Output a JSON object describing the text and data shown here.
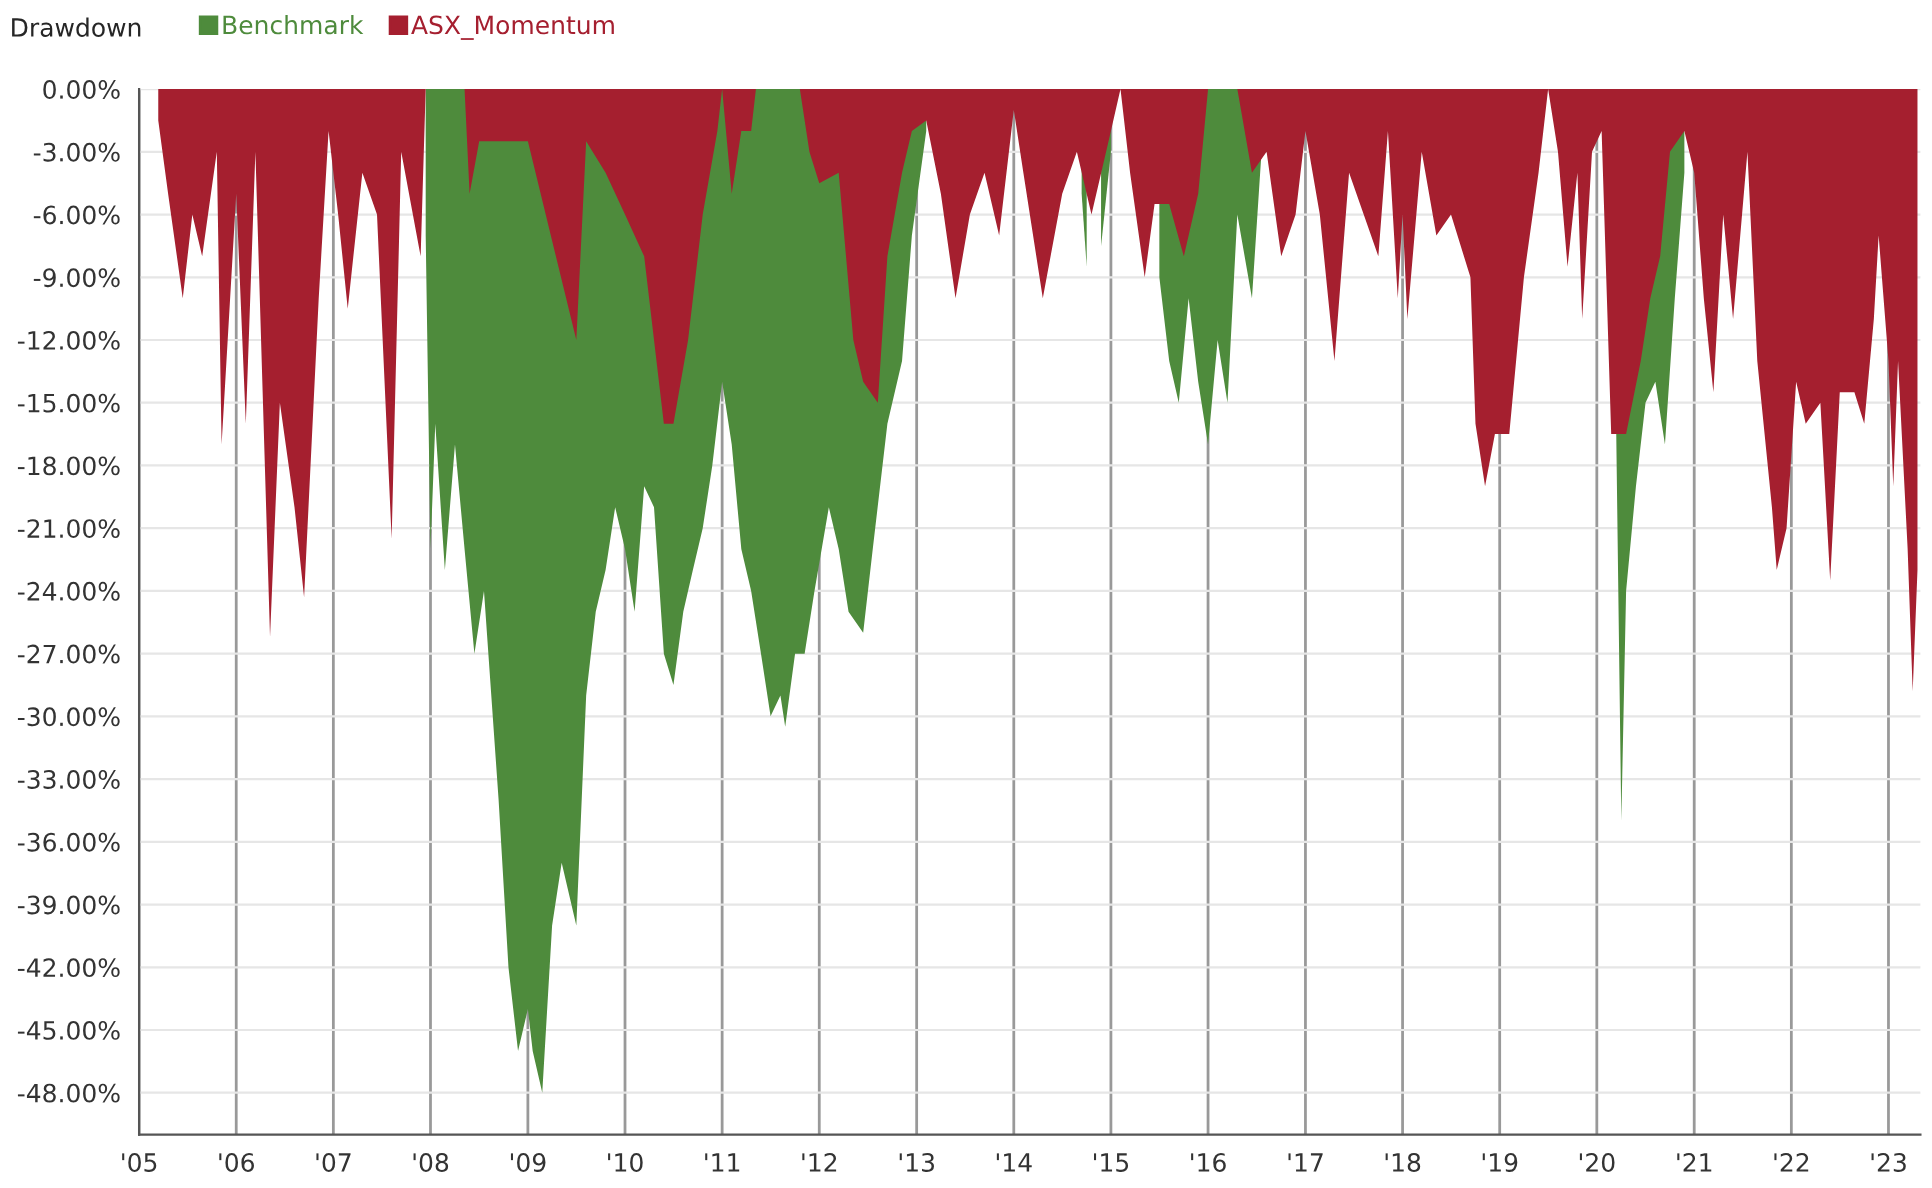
{
  "chart_data": {
    "type": "area",
    "legend_title": "Drawdown",
    "xlim": [
      "2005-01-01",
      "2023-05-01"
    ],
    "xticks": [
      {
        "value": "2005-01-01",
        "label": "'05"
      },
      {
        "value": "2006-01-01",
        "label": "'06"
      },
      {
        "value": "2007-01-01",
        "label": "'07"
      },
      {
        "value": "2008-01-01",
        "label": "'08"
      },
      {
        "value": "2009-01-01",
        "label": "'09"
      },
      {
        "value": "2010-01-01",
        "label": "'10"
      },
      {
        "value": "2011-01-01",
        "label": "'11"
      },
      {
        "value": "2012-01-01",
        "label": "'12"
      },
      {
        "value": "2013-01-01",
        "label": "'13"
      },
      {
        "value": "2014-01-01",
        "label": "'14"
      },
      {
        "value": "2015-01-01",
        "label": "'15"
      },
      {
        "value": "2016-01-01",
        "label": "'16"
      },
      {
        "value": "2017-01-01",
        "label": "'17"
      },
      {
        "value": "2018-01-01",
        "label": "'18"
      },
      {
        "value": "2019-01-01",
        "label": "'19"
      },
      {
        "value": "2020-01-01",
        "label": "'20"
      },
      {
        "value": "2021-01-01",
        "label": "'21"
      },
      {
        "value": "2022-01-01",
        "label": "'22"
      },
      {
        "value": "2023-01-01",
        "label": "'23"
      }
    ],
    "ylim": [
      -50,
      0
    ],
    "yticks": [
      {
        "value": 0,
        "label": "0.00%"
      },
      {
        "value": -3,
        "label": "-3.00%"
      },
      {
        "value": -6,
        "label": "-6.00%"
      },
      {
        "value": -9,
        "label": "-9.00%"
      },
      {
        "value": -12,
        "label": "-12.00%"
      },
      {
        "value": -15,
        "label": "-15.00%"
      },
      {
        "value": -18,
        "label": "-18.00%"
      },
      {
        "value": -21,
        "label": "-21.00%"
      },
      {
        "value": -24,
        "label": "-24.00%"
      },
      {
        "value": -27,
        "label": "-27.00%"
      },
      {
        "value": -30,
        "label": "-30.00%"
      },
      {
        "value": -33,
        "label": "-33.00%"
      },
      {
        "value": -36,
        "label": "-36.00%"
      },
      {
        "value": -39,
        "label": "-39.00%"
      },
      {
        "value": -42,
        "label": "-42.00%"
      },
      {
        "value": -45,
        "label": "-45.00%"
      },
      {
        "value": -48,
        "label": "-48.00%"
      }
    ],
    "grid": true,
    "legend": "top left",
    "series": [
      {
        "name": "Benchmark",
        "color": "#4e8b3c",
        "x": [
          "2007-12-14",
          "2008-01-01",
          "2008-01-19",
          "2008-02-24",
          "2008-04-02",
          "2008-05-08",
          "2008-06-14",
          "2008-07-20",
          "2008-09-13",
          "2008-10-20",
          "2008-11-25",
          "2009-01-01",
          "2009-01-19",
          "2009-02-24",
          "2009-04-02",
          "2009-05-08",
          "2009-07-02",
          "2009-08-08",
          "2009-09-13",
          "2009-10-20",
          "2009-11-25",
          "2010-01-01",
          "2010-02-06",
          "2010-03-14",
          "2010-04-20",
          "2010-05-27",
          "2010-07-02",
          "2010-08-08",
          "2010-09-13",
          "2010-10-20",
          "2010-11-25",
          "2011-01-01",
          "2011-02-06",
          "2011-03-14",
          "2011-04-20",
          "2011-05-27",
          "2011-07-02",
          "2011-08-08",
          "2011-08-26",
          "2011-10-02",
          "2011-11-07",
          "2011-12-14",
          "2012-02-06",
          "2012-03-14",
          "2012-04-20",
          "2012-06-14",
          "2012-07-20",
          "2012-09-13",
          "2012-11-07",
          "2012-12-14",
          "2013-02-06",
          "2013-03-01",
          "2014-08-20",
          "2014-09-13",
          "2014-10-02",
          "2014-10-20",
          "2014-11-25",
          "2015-01-01",
          "2015-01-20",
          "2015-05-10",
          "2015-05-27",
          "2015-07-02",
          "2015-08-08",
          "2015-09-13",
          "2015-10-20",
          "2015-11-25",
          "2016-01-01",
          "2016-02-06",
          "2016-03-14",
          "2016-04-20",
          "2016-06-14",
          "2016-07-20",
          "2016-08-10",
          "2020-03-01",
          "2020-03-14",
          "2020-04-02",
          "2020-04-20",
          "2020-05-27",
          "2020-07-02",
          "2020-08-08",
          "2020-09-13",
          "2020-10-20",
          "2020-11-25"
        ],
        "values": [
          -7,
          -22,
          -16,
          -23,
          -17,
          -22,
          -27,
          -24,
          -34,
          -42,
          -46,
          -44,
          -46,
          -48,
          -40,
          -37,
          -40,
          -29,
          -25,
          -23,
          -20,
          -22,
          -25,
          -19,
          -20,
          -27,
          -28.5,
          -25,
          -23,
          -21,
          -18,
          -14,
          -17,
          -22,
          -24,
          -27,
          -30,
          -29,
          -30.5,
          -27,
          -27,
          -24,
          -20,
          -22,
          -25,
          -26,
          -22,
          -16,
          -13,
          -7,
          -2,
          null,
          null,
          -5,
          -8.5,
          null,
          -7.5,
          -3,
          null,
          null,
          null,
          -9,
          -13,
          -15,
          -10,
          -14,
          -17,
          -12,
          -15,
          -6,
          -10,
          -3,
          null,
          null,
          -16.5,
          -35,
          -24,
          -19,
          -15,
          -14,
          -17,
          -10,
          -4
        ]
      },
      {
        "name": "ASX_Momentum",
        "color": "#a51f2f",
        "x": [
          "2005-03-14",
          "2005-04-20",
          "2005-06-14",
          "2005-07-20",
          "2005-08-26",
          "2005-10-20",
          "2005-11-07",
          "2006-01-01",
          "2006-02-06",
          "2006-03-14",
          "2006-05-08",
          "2006-06-14",
          "2006-08-08",
          "2006-09-13",
          "2006-11-07",
          "2006-12-14",
          "2007-01-19",
          "2007-02-24",
          "2007-04-20",
          "2007-06-14",
          "2007-08-08",
          "2007-09-13",
          "2007-11-25",
          "2007-12-14",
          "2008-05-08",
          "2008-05-27",
          "2008-07-02",
          "2009-01-01",
          "2009-07-02",
          "2009-08-08",
          "2009-10-20",
          "2010-01-01",
          "2010-03-14",
          "2010-05-27",
          "2010-07-02",
          "2010-08-26",
          "2010-10-20",
          "2010-12-14",
          "2011-01-01",
          "2011-02-06",
          "2011-03-14",
          "2011-04-20",
          "2011-05-08",
          "2011-10-20",
          "2011-11-25",
          "2012-01-01",
          "2012-03-14",
          "2012-05-08",
          "2012-06-14",
          "2012-08-08",
          "2012-09-13",
          "2012-11-07",
          "2012-12-14",
          "2013-02-06",
          "2013-04-02",
          "2013-05-27",
          "2013-07-20",
          "2013-09-13",
          "2013-11-07",
          "2014-01-01",
          "2014-02-06",
          "2014-04-20",
          "2014-07-02",
          "2014-08-26",
          "2014-10-20",
          "2015-01-01",
          "2015-02-06",
          "2015-03-14",
          "2015-05-08",
          "2015-06-14",
          "2015-08-08",
          "2015-10-02",
          "2015-11-25",
          "2016-01-01",
          "2016-04-20",
          "2016-06-14",
          "2016-08-08",
          "2016-10-02",
          "2016-11-25",
          "2017-01-01",
          "2017-02-24",
          "2017-04-20",
          "2017-06-14",
          "2017-08-08",
          "2017-10-02",
          "2017-11-07",
          "2017-12-14",
          "2018-01-01",
          "2018-01-19",
          "2018-03-14",
          "2018-05-08",
          "2018-07-02",
          "2018-09-13",
          "2018-10-02",
          "2018-11-07",
          "2018-12-14",
          "2019-02-06",
          "2019-04-02",
          "2019-05-27",
          "2019-07-02",
          "2019-08-08",
          "2019-09-13",
          "2019-10-20",
          "2019-11-07",
          "2019-12-14",
          "2020-01-19",
          "2020-02-24",
          "2020-04-20",
          "2020-06-14",
          "2020-07-20",
          "2020-08-26",
          "2020-10-02",
          "2020-11-25",
          "2021-01-01",
          "2021-02-06",
          "2021-03-14",
          "2021-04-20",
          "2021-05-27",
          "2021-07-20",
          "2021-08-26",
          "2021-10-20",
          "2021-11-07",
          "2021-12-14",
          "2022-01-19",
          "2022-02-24",
          "2022-04-20",
          "2022-05-27",
          "2022-07-02",
          "2022-08-26",
          "2022-10-02",
          "2022-11-07",
          "2022-11-25",
          "2023-01-01",
          "2023-01-19",
          "2023-02-06",
          "2023-03-14",
          "2023-04-02",
          "2023-04-20"
        ],
        "values": [
          -1.5,
          -5,
          -10,
          -6,
          -8,
          -3,
          -17,
          -5,
          -16,
          -3,
          -26.2,
          -15,
          -20,
          -24.3,
          -10,
          -2,
          -6,
          -10.5,
          -4,
          -6,
          -21.5,
          -3,
          -8,
          0,
          0,
          -5,
          -2.5,
          -2.5,
          -12,
          -2.5,
          -4,
          -6,
          -8,
          -16,
          -16,
          -12,
          -6,
          -2,
          0,
          -5,
          -2,
          -2,
          0,
          0,
          -3,
          -4.5,
          -4,
          -12,
          -14,
          -15,
          -8,
          -4,
          -2,
          -1.5,
          -5,
          -10,
          -6,
          -4,
          -7,
          -1,
          -4,
          -10,
          -5,
          -3,
          -6,
          -2,
          0,
          -4,
          -9,
          -5.5,
          -5.5,
          -8,
          -5,
          0,
          0,
          -4,
          -3,
          -8,
          -6,
          -2,
          -6,
          -13,
          -4,
          -6,
          -8,
          -2,
          -10,
          -6,
          -11,
          -3,
          -7,
          -6,
          -9,
          -16,
          -19,
          -16.5,
          -16.5,
          -9,
          -4,
          0,
          -3,
          -8.5,
          -4,
          -11,
          -3,
          -2,
          -16.5,
          -16.5,
          -13,
          -10,
          -8,
          -3,
          -2,
          -4,
          -10,
          -14.5,
          -6,
          -11,
          -3,
          -13,
          -20,
          -23,
          -21,
          -14,
          -16,
          -15,
          -23.5,
          -14.5,
          -14.5,
          -16,
          -11,
          -7,
          -13,
          -19,
          -13,
          -22,
          -28.8,
          -23
        ]
      }
    ]
  }
}
